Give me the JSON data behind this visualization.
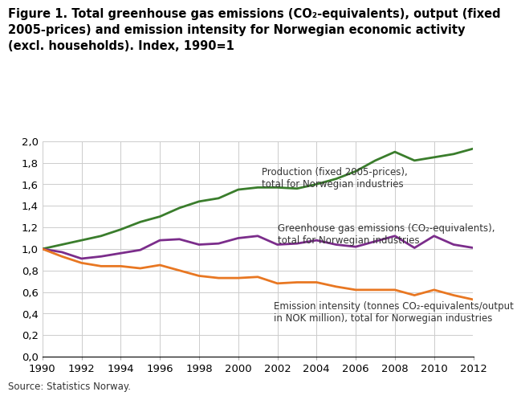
{
  "years": [
    1990,
    1991,
    1992,
    1993,
    1994,
    1995,
    1996,
    1997,
    1998,
    1999,
    2000,
    2001,
    2002,
    2003,
    2004,
    2005,
    2006,
    2007,
    2008,
    2009,
    2010,
    2011,
    2012
  ],
  "production": [
    1.0,
    1.04,
    1.08,
    1.12,
    1.18,
    1.25,
    1.3,
    1.38,
    1.44,
    1.47,
    1.55,
    1.57,
    1.57,
    1.56,
    1.6,
    1.65,
    1.72,
    1.82,
    1.9,
    1.82,
    1.85,
    1.88,
    1.93
  ],
  "ghg_emissions": [
    1.0,
    0.97,
    0.91,
    0.93,
    0.96,
    0.99,
    1.08,
    1.09,
    1.04,
    1.05,
    1.1,
    1.12,
    1.04,
    1.05,
    1.08,
    1.04,
    1.02,
    1.07,
    1.12,
    1.01,
    1.12,
    1.04,
    1.01
  ],
  "emission_intensity": [
    1.0,
    0.93,
    0.87,
    0.84,
    0.84,
    0.82,
    0.85,
    0.8,
    0.75,
    0.73,
    0.73,
    0.74,
    0.68,
    0.69,
    0.69,
    0.65,
    0.62,
    0.62,
    0.62,
    0.57,
    0.62,
    0.57,
    0.53
  ],
  "production_color": "#3a7d2c",
  "ghg_color": "#7b2d8b",
  "intensity_color": "#e87722",
  "label_production": "Production (fixed 2005-prices),\ntotal for Norwegian industries",
  "label_ghg": "Greenhouse gas emissions (CO₂-equivalents),\ntotal for Norwegian industries",
  "label_intensity": "Emission intensity (tonnes CO₂-equivalents/output\nin NOK million), total for Norwegian industries",
  "source": "Source: Statistics Norway.",
  "ylim": [
    0.0,
    2.0
  ],
  "yticks": [
    0.0,
    0.2,
    0.4,
    0.6,
    0.8,
    1.0,
    1.2,
    1.4,
    1.6,
    1.8,
    2.0
  ],
  "xlim": [
    1990,
    2012
  ],
  "xticks": [
    1990,
    1992,
    1994,
    1996,
    1998,
    2000,
    2002,
    2004,
    2006,
    2008,
    2010,
    2012
  ],
  "background_color": "#ffffff",
  "grid_color": "#cccccc",
  "line_width": 2.0,
  "title_fontsize": 10.5,
  "tick_fontsize": 9.5,
  "annotation_fontsize": 8.5
}
